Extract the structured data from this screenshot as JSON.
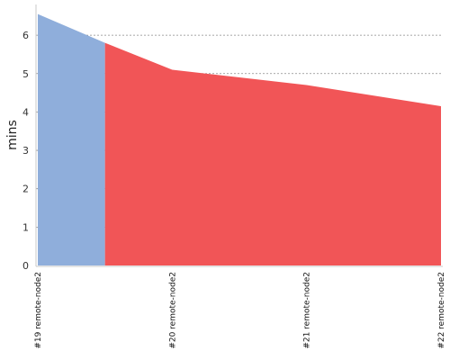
{
  "chart_data": {
    "type": "area",
    "title": "",
    "xlabel": "",
    "ylabel": "mins",
    "categories": [
      "#19 remote-node2",
      "#20 remote-node2",
      "#21 remote-node2",
      "#22 remote-node2"
    ],
    "ylim": [
      0,
      6.8
    ],
    "yticks": [
      0,
      1,
      2,
      3,
      4,
      5,
      6
    ],
    "grid": "horizontal-dashed",
    "segments": [
      {
        "from": "#19 remote-node2",
        "color": "#8faedb",
        "points": [
          [
            0,
            6.55
          ],
          [
            0.5,
            5.8
          ]
        ]
      },
      {
        "from": "#20 remote-node2",
        "color": "#f15557",
        "points": [
          [
            0.5,
            5.8
          ],
          [
            1,
            5.1
          ],
          [
            2,
            4.7
          ],
          [
            3,
            4.15
          ]
        ]
      }
    ]
  }
}
